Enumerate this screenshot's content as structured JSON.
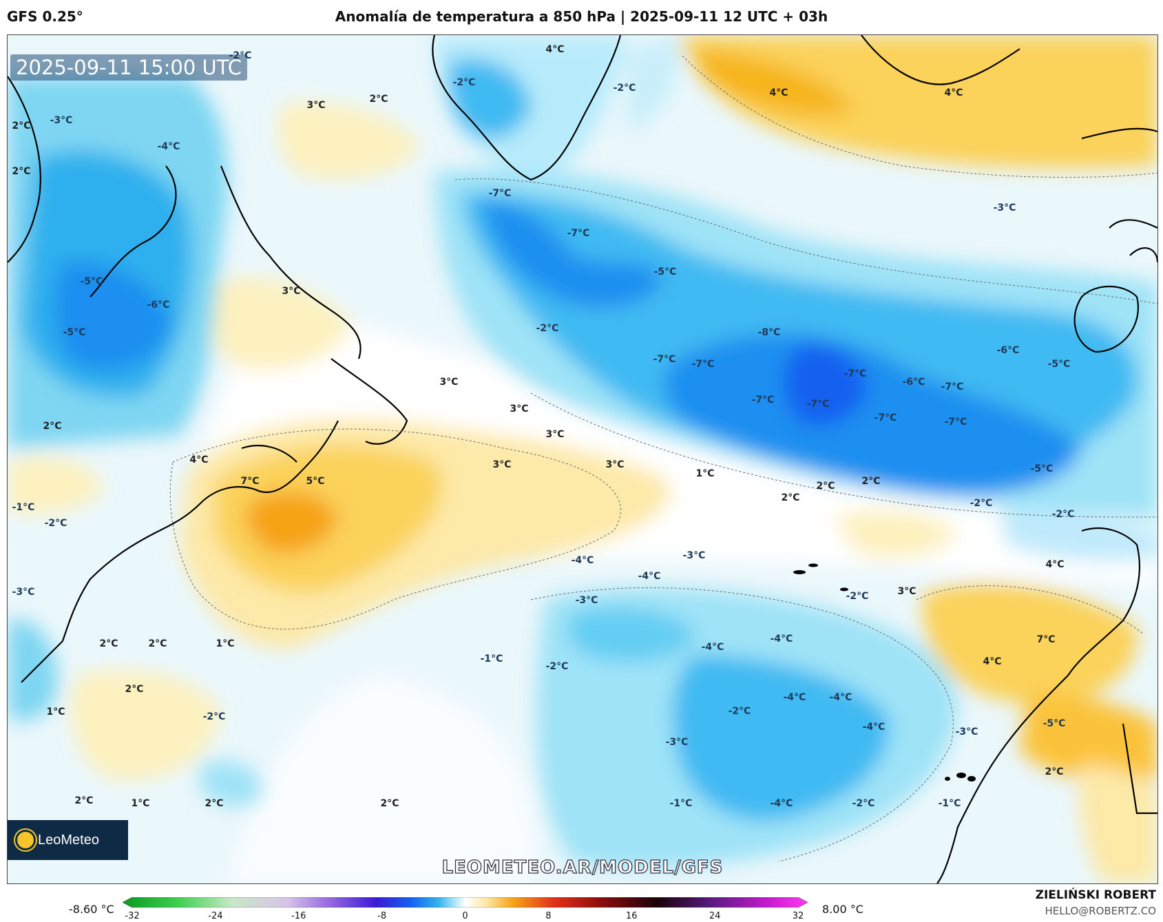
{
  "header": {
    "model": "GFS 0.25°",
    "title": "Anomalía de temperatura a 850 hPa | 2025-09-11 12 UTC + 03h"
  },
  "map": {
    "timestamp": "2025-09-11 15:00 UTC",
    "logo_text": "LeoMeteo",
    "watermark_url": "LEOMETEO.AR/MODEL/GFS",
    "labels": [
      "-2°C",
      "3°C",
      "2°C",
      "-2°C",
      "4°C",
      "-2°C",
      "4°C",
      "4°C",
      "2°C",
      "-3°C",
      "-4°C",
      "2°C",
      "-7°C",
      "-7°C",
      "-3°C",
      "-5°C",
      "-6°C",
      "-5°C",
      "3°C",
      "-5°C",
      "-2°C",
      "-8°C",
      "-7°C",
      "-7°C",
      "-6°C",
      "-5°C",
      "-7°C",
      "-6°C",
      "-7°C",
      "-7°C",
      "-7°C",
      "-7°C",
      "-7°C",
      "3°C",
      "3°C",
      "3°C",
      "2°C",
      "4°C",
      "7°C",
      "5°C",
      "3°C",
      "3°C",
      "1°C",
      "2°C",
      "2°C",
      "2°C",
      "-5°C",
      "-2°C",
      "-2°C",
      "-1°C",
      "-2°C",
      "-4°C",
      "-3°C",
      "-4°C",
      "3°C",
      "-3°C",
      "-3°C",
      "4°C",
      "-2°C",
      "2°C",
      "2°C",
      "1°C",
      "-2°C",
      "-1°C",
      "-2°C",
      "-4°C",
      "-4°C",
      "7°C",
      "4°C",
      "2°C",
      "1°C",
      "-2°C",
      "-4°C",
      "-4°C",
      "-4°C",
      "-3°C",
      "-3°C",
      "-5°C",
      "2°C",
      "2°C",
      "1°C",
      "2°C",
      "2°C",
      "-1°C",
      "-4°C",
      "-2°C",
      "-1°C",
      "1°C"
    ]
  },
  "colorbar": {
    "min_label": "-8.60 °C",
    "max_label": "8.00 °C",
    "ticks": [
      "-32",
      "-24",
      "-16",
      "-8",
      "0",
      "8",
      "16",
      "24",
      "32"
    ]
  },
  "footer": {
    "author": "ZIELIŃSKI ROBERT",
    "email": "HELLO@ROBERTZ.CO"
  }
}
